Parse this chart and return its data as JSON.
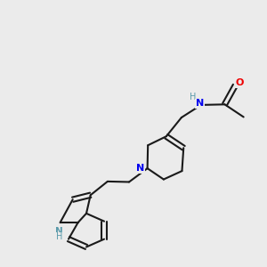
{
  "background_color": "#ebebeb",
  "bond_color": "#1a1a1a",
  "N_color": "#0000ee",
  "O_color": "#ee0000",
  "NH_color": "#5a9aaa",
  "figsize": [
    3.0,
    3.0
  ],
  "dpi": 100,
  "bond_lw": 1.5,
  "xlim": [
    0,
    10
  ],
  "ylim": [
    0,
    10
  ]
}
